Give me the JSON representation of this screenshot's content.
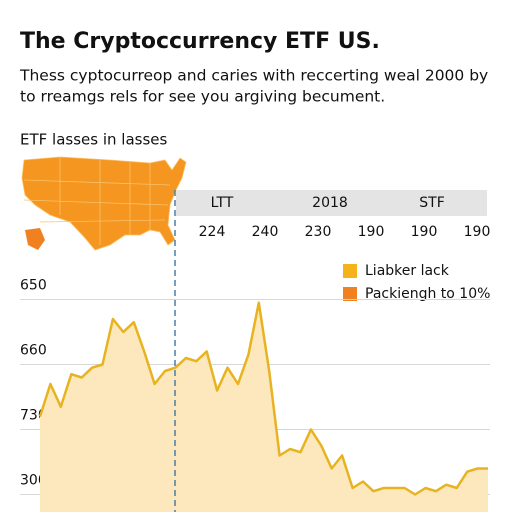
{
  "chart_data": {
    "type": "line",
    "title": "The Cryptoccurrency ETF US.",
    "subtitle": [
      "Thess cyptocurreop and caries with reccerting weal 2000 by",
      "to rreamgs rels for see you argiving becument."
    ],
    "section_label": "ETF lasses in lasses",
    "table": {
      "header": [
        "LTT",
        "2018",
        "STF"
      ],
      "row": [
        "224",
        "240",
        "230",
        "190",
        "190",
        "190"
      ]
    },
    "legend": [
      {
        "label": "Liabker lack",
        "color": "#f5b21a"
      },
      {
        "label": "Packiengh to 10%",
        "color": "#f08020"
      }
    ],
    "categories": [
      null,
      null,
      null,
      null,
      null,
      null,
      null,
      null,
      null,
      null,
      null,
      null,
      null,
      null,
      null,
      null,
      null,
      null,
      null,
      null,
      null,
      null,
      null,
      null,
      null,
      null,
      null,
      null,
      null,
      null,
      null,
      null,
      null,
      null,
      null,
      null,
      null,
      null,
      null,
      null,
      null,
      null,
      null,
      null
    ],
    "values": [
      1.2,
      1.7,
      1.35,
      1.85,
      1.8,
      1.95,
      2.0,
      2.7,
      2.5,
      2.65,
      2.2,
      1.7,
      1.9,
      1.95,
      2.1,
      2.05,
      2.2,
      1.6,
      1.95,
      1.7,
      2.15,
      2.95,
      1.9,
      0.6,
      0.7,
      0.65,
      1.0,
      0.75,
      0.4,
      0.6,
      0.1,
      0.2,
      0.05,
      0.1,
      0.1,
      0.1,
      0.0,
      0.1,
      0.05,
      0.15,
      0.1,
      0.35,
      0.4,
      0.4
    ],
    "color": "#e8b320",
    "fill_color": "#fde7bd",
    "ylim": [
      -0.27,
      3.3
    ],
    "yticks": [
      {
        "value": 3,
        "label": "650"
      },
      {
        "value": 2,
        "label": "660"
      },
      {
        "value": 1,
        "label": "730"
      },
      {
        "value": 0,
        "label": "300"
      }
    ],
    "grid": true
  }
}
